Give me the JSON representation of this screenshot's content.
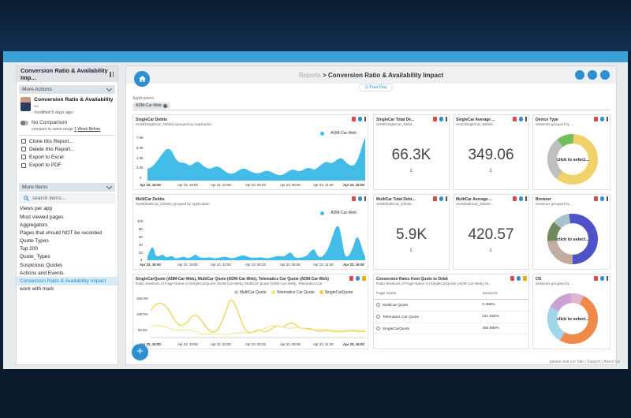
{
  "sidebar": {
    "title": "Conversion Ratio & Availability Imp...",
    "more_actions_label": "More Actions",
    "report_name": "Conversion Ratio & Availability ...",
    "modified": "modified 5 days ago",
    "no_comparison_label": "No Comparison",
    "compare_prefix": "compare to same range",
    "compare_num": "1",
    "compare_link": "Week Before",
    "actions": [
      "Clone this Report...",
      "Delete this Report...",
      "Export to Excel",
      "Export to PDF"
    ],
    "more_items_label": "More Items",
    "search_placeholder": "search items...",
    "items": [
      "Views per app",
      "Most viewed pages",
      "Aggregators",
      "Pages that should NOT be recorded",
      "Quote Types",
      "Top 200",
      "Quote_Types",
      "Suspicious Quotes",
      "Actions and Events",
      "Conversion Ratio & Availability Impact",
      "work with mark"
    ]
  },
  "header": {
    "crumb_parent": "Reports",
    "crumb_sep": ">",
    "crumb_current": "Conversion Ratio & Availability Impact",
    "date_range": "Past Day"
  },
  "filter": {
    "label": "Applications",
    "chip": "ADM-Car-Web"
  },
  "widgets": {
    "sc_debits": {
      "title": "SingleCar Debits",
      "sub": "SUM(SingleCar_Debits) grouped by Application",
      "legend": "ADM-Car-Web",
      "yticks": [
        "7.0K",
        "6.0K",
        "4.0K",
        "2.0K",
        "0"
      ],
      "xticks": [
        "Apr 22, 16:00",
        "Apr 22, 19:00",
        "Apr 22, 22:00",
        "Apr 23, 00:33",
        "Apr 23, 06:06",
        "Apr 23, 11:40",
        "Apr 23, 16:00"
      ]
    },
    "sc_total": {
      "title": "SingleCar Total De...",
      "sub": "SUM(SingleCar_Debit...",
      "value": "66.3K",
      "unit": "£"
    },
    "sc_avg": {
      "title": "SingleCar Average ...",
      "sub": "AVG(SingleCar_Debits...",
      "value": "349.06",
      "unit": "£"
    },
    "device": {
      "title": "Device Type",
      "sub": "Sessions grouped by ...",
      "center": "click to select..."
    },
    "mc_debits": {
      "title": "MultiCar Debits",
      "sub": "SUM(MultiCar_Debits) grouped by Application",
      "legend": "ADM-Car-Web",
      "yticks": [
        "100",
        "80",
        "60",
        "40",
        "20",
        "0"
      ],
      "xticks": [
        "Apr 22, 16:00",
        "Apr 22, 19:00",
        "Apr 22, 22:00",
        "Apr 23, 00:33",
        "Apr 23, 06:06",
        "Apr 23, 11:40",
        "Apr 23, 16:00"
      ]
    },
    "mc_total": {
      "title": "MultiCar Total Debi...",
      "sub": "SUM(MultiCar_Debits...",
      "value": "5.9K",
      "unit": "£"
    },
    "mc_avg": {
      "title": "MultiCar Average ...",
      "sub": "AVG(MultiCar_Debits...",
      "value": "420.57",
      "unit": "£"
    },
    "browser": {
      "title": "Browser",
      "sub": "Sessions grouped by ...",
      "center": "click to select..."
    },
    "ratio": {
      "title": "SingleCarQuote (ADM-Car-Web), MultiCar Quote (ADM-Car-Web), Telematics Car Quote (ADM-Car-Web)",
      "sub": "Ratio Sessions of Page Name in [SingleCarQuote (ADM-Car-Web), MultiCar Quote (ADM-Car-Web), Telematics Car",
      "legend": [
        "MultiCar Quote",
        "Telematics Car Quote",
        "SingleCarQuote"
      ],
      "yticks": [
        "150.0%",
        "100.0%",
        "50.0%"
      ],
      "xticks": [
        "Apr 22, 16:00",
        "Apr 22, 19:00",
        "Apr 22, 22:00",
        "Apr 23, 00:33",
        "Apr 23, 06:06",
        "Apr 23, 11:40",
        "Apr 23, 16:00"
      ]
    },
    "conv": {
      "title": "Conversion Rates from Quote to Debit",
      "sub": "Ratio Sessions of Page Name in [SingleCarQuote (ADM-Car-Web), M...",
      "col1": "Page Name",
      "col2": "Sessions",
      "rows": [
        {
          "name": "MultiCar Quote",
          "val": "0.485%"
        },
        {
          "name": "Telematics Car Quote",
          "val": "241.262%"
        },
        {
          "name": "SingleCarQuote",
          "val": "460.680%"
        }
      ]
    },
    "os": {
      "title": "OS",
      "sub": "Sessions grouped by ...",
      "center": "click to select..."
    }
  },
  "footer": "please visit our Site | Support | About Us",
  "colors": {
    "accent": "#2e8fd0",
    "area": "#43bde8",
    "yellow": "#f0d65a"
  }
}
